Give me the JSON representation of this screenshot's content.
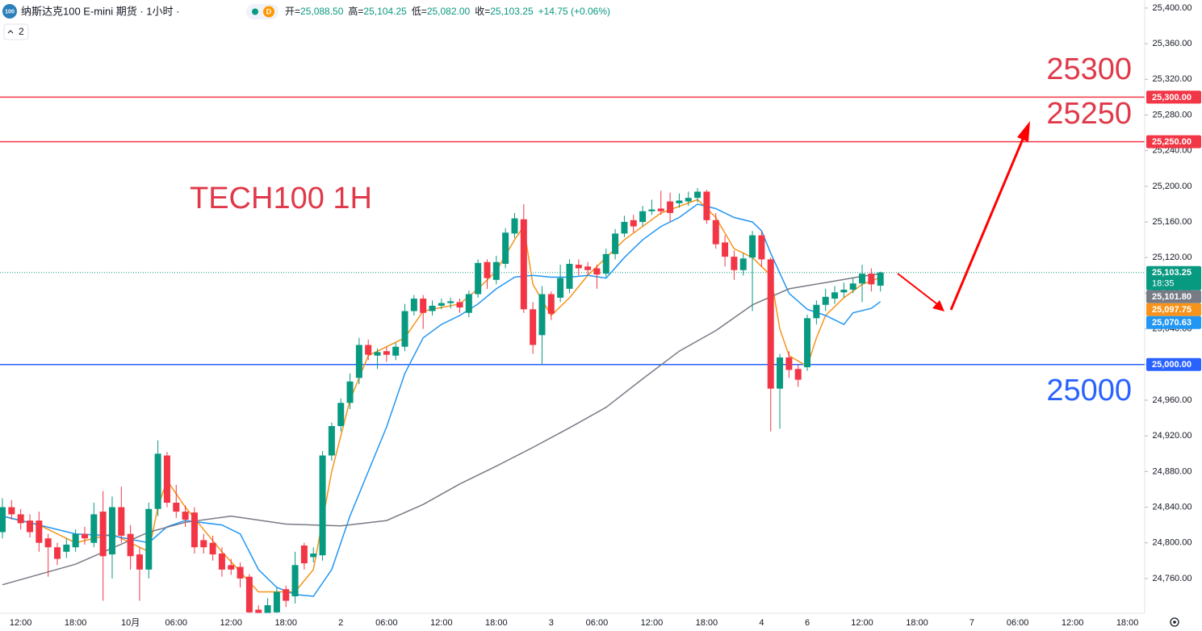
{
  "header": {
    "icon": "100",
    "title": "纳斯达克100 E-mini 期货 · 1小时 ·",
    "badge": "D",
    "ohlc": [
      {
        "label": "开=",
        "value": "25,088.50"
      },
      {
        "label": "高=",
        "value": "25,104.25"
      },
      {
        "label": "低=",
        "value": "25,082.00"
      },
      {
        "label": "收=",
        "value": "25,103.25"
      }
    ],
    "change": "+14.75 (+0.06%)",
    "indicators_count": "2"
  },
  "chart_data": {
    "type": "candlestick",
    "up_color": "#089981",
    "down_color": "#f23645",
    "categories": [
      null,
      null,
      "12:00",
      null,
      null,
      null,
      null,
      null,
      "18:00",
      null,
      null,
      null,
      null,
      null,
      "10月",
      null,
      null,
      null,
      null,
      "06:00",
      null,
      null,
      null,
      null,
      null,
      "12:00",
      null,
      null,
      null,
      null,
      null,
      "18:00",
      null,
      null,
      null,
      null,
      null,
      "2",
      null,
      null,
      null,
      null,
      "06:00",
      null,
      null,
      null,
      null,
      null,
      "12:00",
      null,
      null,
      null,
      null,
      null,
      "18:00",
      null,
      null,
      null,
      null,
      null,
      "3",
      null,
      null,
      null,
      null,
      "06:00",
      null,
      null,
      null,
      null,
      null,
      "12:00",
      null,
      null,
      null,
      null,
      null,
      "18:00",
      null,
      null,
      null,
      null,
      null,
      "4",
      null,
      null,
      null,
      null,
      "6",
      null,
      null,
      null,
      null,
      null,
      "12:00",
      null,
      null,
      null,
      null,
      null,
      "18:00",
      null,
      null,
      null,
      null,
      null,
      "7",
      null,
      null,
      null,
      null,
      "06:00",
      null,
      null,
      null,
      null,
      null,
      "12:00",
      null,
      null,
      null,
      null,
      null,
      "18:00",
      null,
      null
    ],
    "open": [
      24812,
      24840,
      24832,
      24825,
      24825,
      24805,
      24795,
      24790,
      24795,
      24810,
      24800,
      24835,
      24787,
      24840,
      24810,
      24787,
      24770,
      24838,
      24898,
      24845,
      24835,
      24834,
      24803,
      24800,
      24788,
      24775,
      24773,
      24762,
      24725,
      24721,
      24722,
      24748,
      24740,
      24797,
      24784,
      24786,
      24898,
      24931,
      24957,
      24985,
      25022,
      25010,
      25015,
      25010,
      25020,
      25060,
      25074,
      25060,
      25066,
      25069,
      25070,
      25058,
      25079,
      25115,
      25095,
      25113,
      25147,
      25163,
      25062,
      25033,
      25079,
      25075,
      25085,
      25112,
      25110,
      25108,
      25102,
      25124,
      25147,
      25162,
      25160,
      25172,
      25175,
      25183,
      25181,
      25183,
      25187,
      25194,
      25162,
      25137,
      25121,
      25106,
      25120,
      25145,
      25118,
      24973,
      25008,
      24995,
      24997,
      25052,
      25067,
      25074,
      25081,
      25084,
      25091,
      25102,
      25088.5,
      null,
      null,
      null,
      null,
      null,
      null,
      null,
      null,
      null,
      null,
      null,
      null,
      null,
      null,
      null,
      null,
      null,
      null,
      null,
      null,
      null,
      null,
      null,
      null,
      null,
      null,
      null,
      null,
      null
    ],
    "high": [
      24850,
      24848,
      24838,
      24832,
      24835,
      24810,
      24800,
      24805,
      24815,
      24818,
      24845,
      24858,
      24852,
      24863,
      24820,
      24795,
      24845,
      24915,
      24902,
      24865,
      24842,
      24840,
      24810,
      24808,
      24795,
      24782,
      24778,
      24765,
      24730,
      24738,
      24750,
      24752,
      24790,
      24800,
      24795,
      24903,
      24935,
      24962,
      24990,
      25030,
      25028,
      25018,
      25020,
      25025,
      25068,
      25078,
      25078,
      25072,
      25074,
      25075,
      25074,
      25083,
      25118,
      25118,
      25122,
      25153,
      25170,
      25180,
      25070,
      25088,
      25082,
      25112,
      25118,
      25118,
      25115,
      25112,
      25130,
      25152,
      25167,
      25168,
      25178,
      25185,
      25195,
      25193,
      25192,
      25194,
      25198,
      25196,
      25170,
      25145,
      25128,
      25125,
      25150,
      25150,
      25120,
      25012,
      25015,
      25000,
      25056,
      25072,
      25085,
      25088,
      25092,
      25098,
      25112,
      25108,
      25104.25,
      null,
      null,
      null,
      null,
      null,
      null,
      null,
      null,
      null,
      null,
      null,
      null,
      null,
      null,
      null,
      null,
      null,
      null,
      null,
      null,
      null,
      null,
      null,
      null,
      null,
      null,
      null,
      null,
      null
    ],
    "low": [
      24805,
      24826,
      24815,
      24806,
      24790,
      24762,
      24775,
      24783,
      24790,
      24798,
      24795,
      24735,
      24760,
      24800,
      24770,
      24735,
      24760,
      24830,
      24840,
      24828,
      24818,
      24788,
      24788,
      24780,
      24762,
      24764,
      24750,
      24712,
      24715,
      24712,
      24715,
      24728,
      24732,
      24770,
      24778,
      24780,
      24892,
      24925,
      24950,
      24978,
      25005,
      24995,
      25003,
      25005,
      25015,
      25055,
      25040,
      25055,
      25062,
      25063,
      25058,
      25053,
      25075,
      25085,
      25090,
      25108,
      25142,
      25058,
      25012,
      25000,
      25050,
      25070,
      25080,
      25100,
      25100,
      25085,
      25098,
      25118,
      25143,
      25148,
      25155,
      25168,
      25168,
      25160,
      25176,
      25178,
      25182,
      25158,
      25130,
      25110,
      25095,
      25100,
      25060,
      25110,
      24925,
      24928,
      24985,
      24975,
      24993,
      25045,
      25060,
      25068,
      25075,
      25080,
      25070,
      25082,
      25082,
      null,
      null,
      null,
      null,
      null,
      null,
      null,
      null,
      null,
      null,
      null,
      null,
      null,
      null,
      null,
      null,
      null,
      null,
      null,
      null,
      null,
      null,
      null,
      null,
      null,
      null,
      null,
      null,
      null
    ],
    "close": [
      24840,
      24832,
      24822,
      24812,
      24800,
      24795,
      24782,
      24798,
      24810,
      24805,
      24832,
      24785,
      24840,
      24808,
      24785,
      24770,
      24838,
      24900,
      24845,
      24835,
      24826,
      24795,
      24795,
      24787,
      24770,
      24770,
      24760,
      24722,
      24721,
      24730,
      24745,
      24735,
      24775,
      24777,
      24788,
      24898,
      24931,
      24957,
      24981,
      25022,
      25011,
      25014,
      25011,
      25020,
      25060,
      25074,
      25058,
      25066,
      25069,
      25071,
      25064,
      25079,
      25114,
      25097,
      25115,
      25148,
      25164,
      25062,
      25022,
      25079,
      25057,
      25097,
      25113,
      25108,
      25106,
      25101,
      25124,
      25147,
      25160,
      25155,
      25172,
      25174,
      25172,
      25170,
      25184,
      25187,
      25194,
      25162,
      25135,
      25121,
      25106,
      25119,
      25145,
      25118,
      24973,
      25008,
      24994,
      24983,
      25052,
      25067,
      25076,
      25081,
      25084,
      25091,
      25102,
      25090,
      25103.25,
      null,
      null,
      null,
      null,
      null,
      null,
      null,
      null,
      null,
      null,
      null,
      null,
      null,
      null,
      null,
      null,
      null,
      null,
      null,
      null,
      null,
      null,
      null,
      null,
      null,
      null,
      null,
      null,
      null
    ],
    "ma_lines": [
      {
        "color": "#f7931a",
        "x": [
          0,
          4,
          8,
          12,
          16,
          17,
          18,
          20,
          24,
          28,
          32,
          34,
          36,
          38,
          40,
          44,
          46,
          50,
          52,
          54,
          56,
          57,
          58,
          60,
          62,
          64,
          68,
          72,
          76,
          78,
          80,
          82,
          84,
          85,
          86,
          88,
          89,
          90,
          92,
          94,
          96
        ],
        "values": [
          24830,
          24820,
          24800,
          24810,
          24790,
          24840,
          24870,
          24840,
          24790,
          24745,
          24745,
          24770,
          24880,
          24960,
          25010,
          25030,
          25060,
          25068,
          25085,
          25105,
          25140,
          25155,
          25090,
          25055,
          25075,
          25100,
          25140,
          25170,
          25185,
          25165,
          25130,
          25120,
          25100,
          25040,
          25010,
          24998,
          25030,
          25055,
          25075,
          25090,
          25097.75
        ]
      },
      {
        "color": "#2196f3",
        "x": [
          0,
          4,
          8,
          12,
          16,
          18,
          20,
          24,
          26,
          28,
          30,
          32,
          34,
          36,
          38,
          40,
          42,
          44,
          46,
          48,
          50,
          52,
          54,
          56,
          58,
          60,
          62,
          64,
          66,
          68,
          70,
          72,
          74,
          76,
          78,
          80,
          82,
          83,
          84,
          86,
          88,
          90,
          92,
          93,
          95,
          96
        ],
        "values": [
          24830,
          24820,
          24810,
          24808,
          24800,
          24818,
          24825,
          24820,
          24810,
          24770,
          24750,
          24742,
          24740,
          24770,
          24830,
          24880,
          24930,
          24990,
          25030,
          25045,
          25055,
          25068,
          25085,
          25098,
          25100,
          25098,
          25098,
          25100,
          25097,
          25120,
          25140,
          25155,
          25165,
          25180,
          25175,
          25165,
          25160,
          25150,
          25125,
          25080,
          25062,
          25055,
          25045,
          25058,
          25063,
          25070.63
        ]
      },
      {
        "color": "#787b86",
        "x": [
          0,
          8,
          16,
          20,
          25,
          31,
          37,
          42,
          46,
          50,
          54,
          58,
          62,
          66,
          70,
          74,
          78,
          82,
          86,
          90,
          94,
          96
        ],
        "values": [
          24753,
          24776,
          24812,
          24823,
          24830,
          24821,
          24819,
          24825,
          24843,
          24866,
          24886,
          24907,
          24929,
          24952,
          24984,
          25015,
          25038,
          25067,
          25085,
          25092,
          25099,
          25101.8
        ]
      }
    ],
    "hlines": [
      {
        "value": 25300,
        "color": "#f23645"
      },
      {
        "value": 25250,
        "color": "#f23645"
      },
      {
        "value": 25000,
        "color": "#2962ff"
      }
    ],
    "price_labels": [
      {
        "value": 25300,
        "label": "25,300.00",
        "color": "#f23645"
      },
      {
        "value": 25250,
        "label": "25,250.00",
        "color": "#f23645"
      },
      {
        "value": 25103.25,
        "label": "25,103.25",
        "countdown": "18:35",
        "color": "#089981"
      },
      {
        "value": 25101.8,
        "label": "25,101.80",
        "color": "#787b86"
      },
      {
        "value": 25097.75,
        "label": "25,097.75",
        "color": "#f7931a"
      },
      {
        "value": 25070.63,
        "label": "25,070.63",
        "color": "#2196f3"
      },
      {
        "value": 25000,
        "label": "25,000.00",
        "color": "#2962ff"
      }
    ],
    "annotations": {
      "label": "TECH100 1H",
      "target_high": "25300",
      "target_mid": "25250",
      "support": "25000"
    },
    "ylim": [
      24721,
      25409
    ],
    "yticks": [
      {
        "value": 25400,
        "label": "25,400.00"
      },
      {
        "value": 25360,
        "label": "25,360.00"
      },
      {
        "value": 25320,
        "label": "25,320.00"
      },
      {
        "value": 25280,
        "label": "25,280.00"
      },
      {
        "value": 25240,
        "label": "25,240.00"
      },
      {
        "value": 25200,
        "label": "25,200.00"
      },
      {
        "value": 25160,
        "label": "25,160.00"
      },
      {
        "value": 25120,
        "label": "25,120.00"
      },
      {
        "value": 25080,
        "label": "25,080.00"
      },
      {
        "value": 25040,
        "label": "25,040.00"
      },
      {
        "value": 25000,
        "label": "25,000.00"
      },
      {
        "value": 24960,
        "label": "24,960.00"
      },
      {
        "value": 24920,
        "label": "24,920.00"
      },
      {
        "value": 24880,
        "label": "24,880.00"
      },
      {
        "value": 24840,
        "label": "24,840.00"
      },
      {
        "value": 24800,
        "label": "24,800.00"
      },
      {
        "value": 24760,
        "label": "24,760.00"
      }
    ]
  }
}
